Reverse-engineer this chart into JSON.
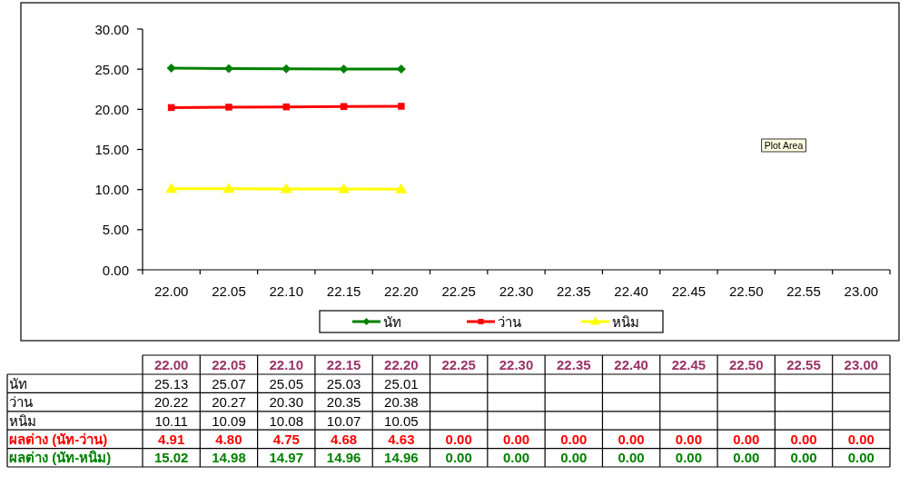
{
  "chart_data": {
    "type": "line",
    "categories": [
      "22.00",
      "22.05",
      "22.10",
      "22.15",
      "22.20",
      "22.25",
      "22.30",
      "22.35",
      "22.40",
      "22.45",
      "22.50",
      "22.55",
      "23.00"
    ],
    "series": [
      {
        "name": "นัท",
        "color": "#008000",
        "marker": "diamond",
        "values": [
          25.13,
          25.07,
          25.05,
          25.03,
          25.01,
          null,
          null,
          null,
          null,
          null,
          null,
          null,
          null
        ],
        "value_labels": [
          "25.13",
          "25.07",
          "25.05",
          "25.03",
          "25.01",
          null,
          null,
          null,
          null,
          null,
          null,
          null,
          null
        ]
      },
      {
        "name": "ว่าน",
        "color": "#ff0000",
        "marker": "square",
        "values": [
          20.22,
          20.27,
          20.3,
          20.35,
          20.38,
          null,
          null,
          null,
          null,
          null,
          null,
          null,
          null
        ],
        "value_labels": [
          "20.22",
          "20.27",
          "20.30",
          "20.35",
          "20.38",
          null,
          null,
          null,
          null,
          null,
          null,
          null,
          null
        ]
      },
      {
        "name": "หนิม",
        "color": "#ffff00",
        "marker": "triangle",
        "values": [
          10.11,
          10.09,
          10.08,
          10.07,
          10.05,
          null,
          null,
          null,
          null,
          null,
          null,
          null,
          null
        ],
        "value_labels": [
          "10.11",
          "10.09",
          "10.08",
          "10.07",
          "10.05",
          null,
          null,
          null,
          null,
          null,
          null,
          null,
          null
        ]
      },
      {
        "name": "ผลต่าง (นัท-ว่าน)",
        "type": "other",
        "color": "#ff0000",
        "values": [
          null,
          null,
          null,
          null,
          null,
          null,
          null,
          null,
          null,
          null,
          null,
          null,
          null
        ],
        "value_labels": [
          "4.91",
          "4.80",
          "4.75",
          "4.68",
          "4.63",
          "0.00",
          "0.00",
          "0.00",
          "0.00",
          "0.00",
          "0.00",
          "0.00",
          "0.00"
        ]
      },
      {
        "name": "ผลต่าง (นัท-หนิม)",
        "type": "other",
        "color": "#008000",
        "values": [
          null,
          null,
          null,
          null,
          null,
          null,
          null,
          null,
          null,
          null,
          null,
          null,
          null
        ],
        "value_labels": [
          "15.02",
          "14.98",
          "14.97",
          "14.96",
          "14.96",
          "0.00",
          "0.00",
          "0.00",
          "0.00",
          "0.00",
          "0.00",
          "0.00",
          "0.00"
        ]
      }
    ],
    "ylim": [
      0,
      30
    ],
    "yticks": [
      {
        "value": 0,
        "label": "0.00"
      },
      {
        "value": 5,
        "label": "5.00"
      },
      {
        "value": 10,
        "label": "10.00"
      },
      {
        "value": 15,
        "label": "15.00"
      },
      {
        "value": 20,
        "label": "20.00"
      },
      {
        "value": 25,
        "label": "25.00"
      },
      {
        "value": 30,
        "label": "30.00"
      }
    ],
    "grid": false,
    "legend": "bottom",
    "annotations": [
      "Plot Area"
    ]
  }
}
